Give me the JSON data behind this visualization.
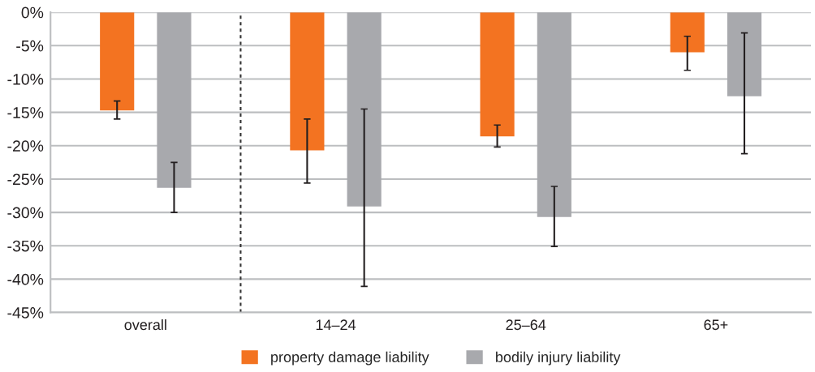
{
  "chart_data": {
    "type": "bar",
    "categories": [
      "overall",
      "14–24",
      "25–64",
      "65+"
    ],
    "series": [
      {
        "name": "property damage liability",
        "color": "#f37321",
        "values": [
          -14.7,
          -20.7,
          -18.6,
          -6.0
        ],
        "errors": [
          [
            -16.0,
            -13.3
          ],
          [
            -25.6,
            -16.0
          ],
          [
            -20.2,
            -16.9
          ],
          [
            -8.7,
            -3.6
          ]
        ]
      },
      {
        "name": "bodily injury liability",
        "color": "#a8a9ad",
        "values": [
          -26.3,
          -29.1,
          -30.7,
          -12.6
        ],
        "errors": [
          [
            -30.0,
            -22.5
          ],
          [
            -41.1,
            -14.5
          ],
          [
            -35.1,
            -26.1
          ],
          [
            -21.2,
            -3.1
          ]
        ]
      }
    ],
    "ylim": [
      -45,
      0
    ],
    "yticks": [
      {
        "value": -45,
        "label": "-45%"
      },
      {
        "value": -40,
        "label": "-40%"
      },
      {
        "value": -35,
        "label": "-35%"
      },
      {
        "value": -30,
        "label": "-30%"
      },
      {
        "value": -25,
        "label": "-25%"
      },
      {
        "value": -20,
        "label": "-20%"
      },
      {
        "value": -15,
        "label": "-15%"
      },
      {
        "value": -10,
        "label": "-10%"
      },
      {
        "value": -5,
        "label": "-5%"
      },
      {
        "value": 0,
        "label": "0%"
      }
    ],
    "grid": "y",
    "legend": "bottom"
  }
}
